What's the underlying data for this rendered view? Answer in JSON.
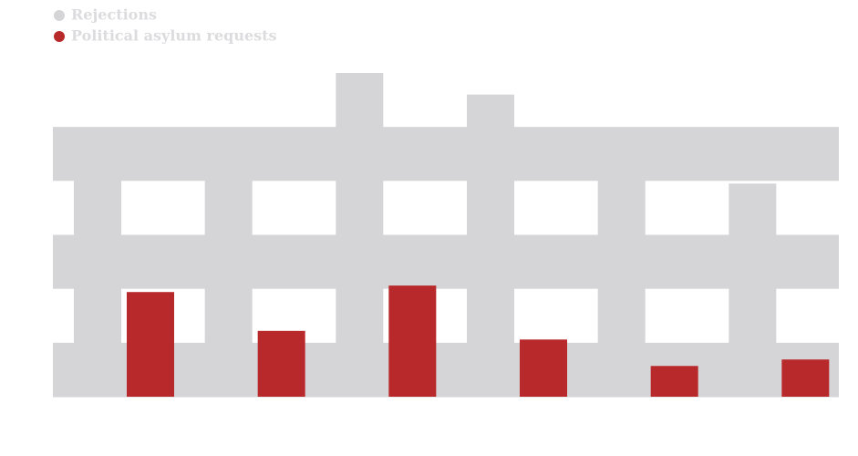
{
  "chart_data": {
    "type": "bar",
    "categories": [
      null,
      null,
      null,
      null,
      null,
      null
    ],
    "series": [
      {
        "name": "Rejections",
        "color": "#d5d5d8",
        "values": [
          4.85,
          4.3,
          6.0,
          5.6,
          4.65,
          3.95
        ]
      },
      {
        "name": "Political asylum requests",
        "color": "#b8292b",
        "values": [
          1.94,
          1.22,
          2.06,
          1.06,
          0.57,
          0.69
        ]
      }
    ],
    "ylim": [
      0,
      6
    ],
    "yticks": [
      0,
      1,
      2,
      3,
      4,
      5,
      6
    ],
    "grid": true,
    "legend": "top-left"
  }
}
